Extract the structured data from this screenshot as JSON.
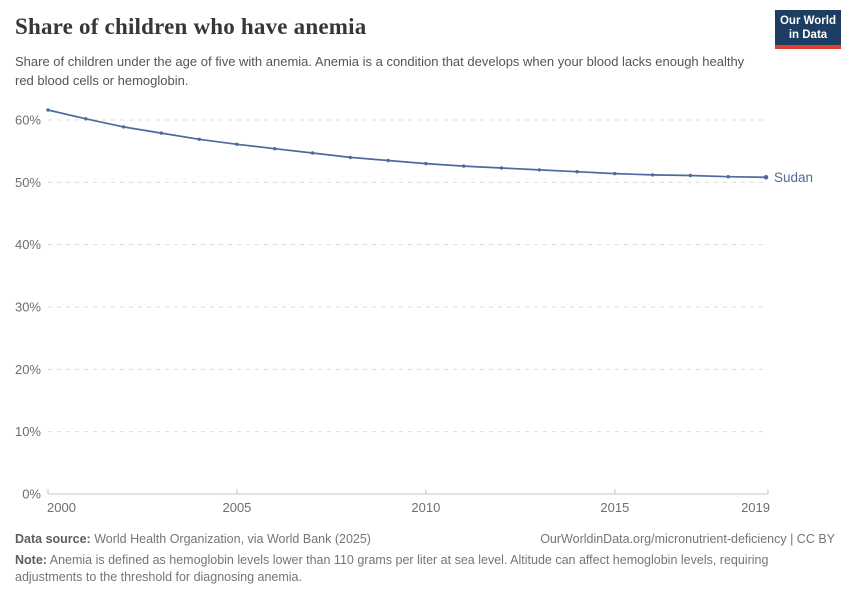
{
  "header": {
    "title": "Share of children who have anemia",
    "subtitle": "Share of children under the age of five with anemia. Anemia is a condition that develops when your blood lacks enough healthy red blood cells or hemoglobin.",
    "logo": {
      "line1": "Our World",
      "line2": "in Data"
    }
  },
  "chart_data": {
    "type": "line",
    "title": "Share of children who have anemia",
    "unit": "%",
    "x": [
      2000,
      2001,
      2002,
      2003,
      2004,
      2005,
      2006,
      2007,
      2008,
      2009,
      2010,
      2011,
      2012,
      2013,
      2014,
      2015,
      2016,
      2017,
      2018,
      2019
    ],
    "series": [
      {
        "name": "Sudan",
        "color": "#4c6a9c",
        "values": [
          61.6,
          60.2,
          58.9,
          57.9,
          56.9,
          56.1,
          55.4,
          54.7,
          54.0,
          53.5,
          53.0,
          52.6,
          52.3,
          52.0,
          51.7,
          51.4,
          51.2,
          51.1,
          50.9,
          50.8
        ]
      }
    ],
    "xlim": [
      2000,
      2019
    ],
    "ylim": [
      0,
      62
    ],
    "x_ticks": [
      2000,
      2005,
      2010,
      2015,
      2019
    ],
    "y_ticks": [
      {
        "value": 0,
        "label": "0%"
      },
      {
        "value": 10,
        "label": "10%"
      },
      {
        "value": 20,
        "label": "20%"
      },
      {
        "value": 30,
        "label": "30%"
      },
      {
        "value": 40,
        "label": "40%"
      },
      {
        "value": 50,
        "label": "50%"
      },
      {
        "value": 60,
        "label": "60%"
      }
    ],
    "grid": "horizontal-dashed",
    "legend_position": "end-of-line-label",
    "end_label": "Sudan"
  },
  "colors": {
    "line": "#4c6a9c",
    "grid": "#dcdcdc",
    "axis": "#c4c4c4",
    "tick_label": "#6e6e6e",
    "title": "#373737",
    "subtitle": "#555555",
    "footer": "#757575",
    "logo_bg": "#1d3d63",
    "logo_bar": "#dc3e32"
  },
  "footer": {
    "source_label": "Data source:",
    "source_text": " World Health Organization, via World Bank (2025)",
    "rights": "OurWorldinData.org/micronutrient-deficiency | CC BY",
    "note_label": "Note:",
    "note_text": " Anemia is defined as hemoglobin levels lower than 110 grams per liter at sea level. Altitude can affect hemoglobin levels, requiring adjustments to the threshold for diagnosing anemia."
  }
}
